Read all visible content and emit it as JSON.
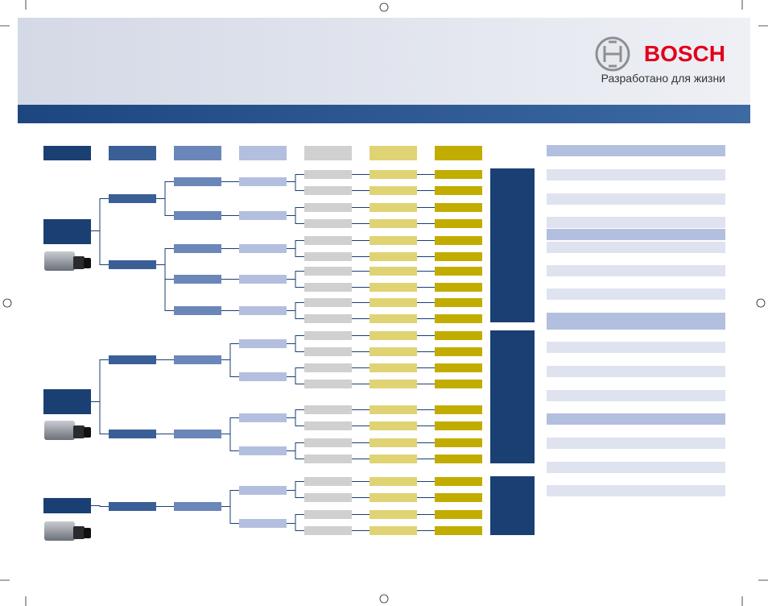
{
  "header": {
    "brand": "BOSCH",
    "tagline": "Разработано для жизни"
  }
}
